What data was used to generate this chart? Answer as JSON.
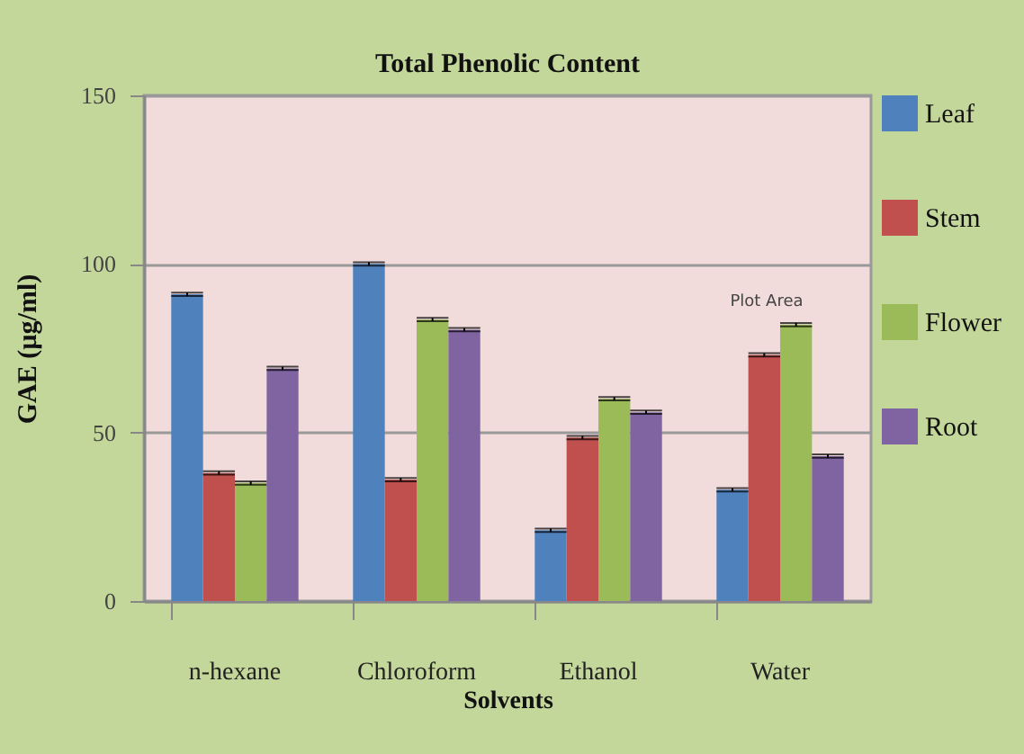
{
  "chart_data": {
    "type": "bar",
    "title": "Total Phenolic Content",
    "xlabel": "Solvents",
    "ylabel": "GAE (µg/ml)",
    "categories": [
      "n-hexane",
      "Chloroform",
      "Ethanol",
      "Water"
    ],
    "series": [
      {
        "name": "Leaf",
        "color": "#4f81bd",
        "values": [
          91,
          100,
          21,
          33
        ],
        "errors": [
          0.5,
          0.5,
          0.5,
          0.5
        ]
      },
      {
        "name": "Stem",
        "color": "#c0504d",
        "values": [
          38,
          36,
          48.5,
          73
        ],
        "errors": [
          0.5,
          0.5,
          0.5,
          0.5
        ]
      },
      {
        "name": "Flower",
        "color": "#9bbb59",
        "values": [
          35,
          83.5,
          60,
          82
        ],
        "errors": [
          0.5,
          0.5,
          0.5,
          0.5
        ]
      },
      {
        "name": "Root",
        "color": "#8064a2",
        "values": [
          69,
          80.5,
          56,
          43
        ],
        "errors": [
          0.5,
          0.5,
          0.5,
          0.5
        ]
      }
    ],
    "ylim": [
      0,
      150
    ],
    "yticks": [
      0,
      50,
      100,
      150
    ],
    "grid": "y",
    "legend": "right",
    "annotations": [
      "Plot Area"
    ]
  }
}
